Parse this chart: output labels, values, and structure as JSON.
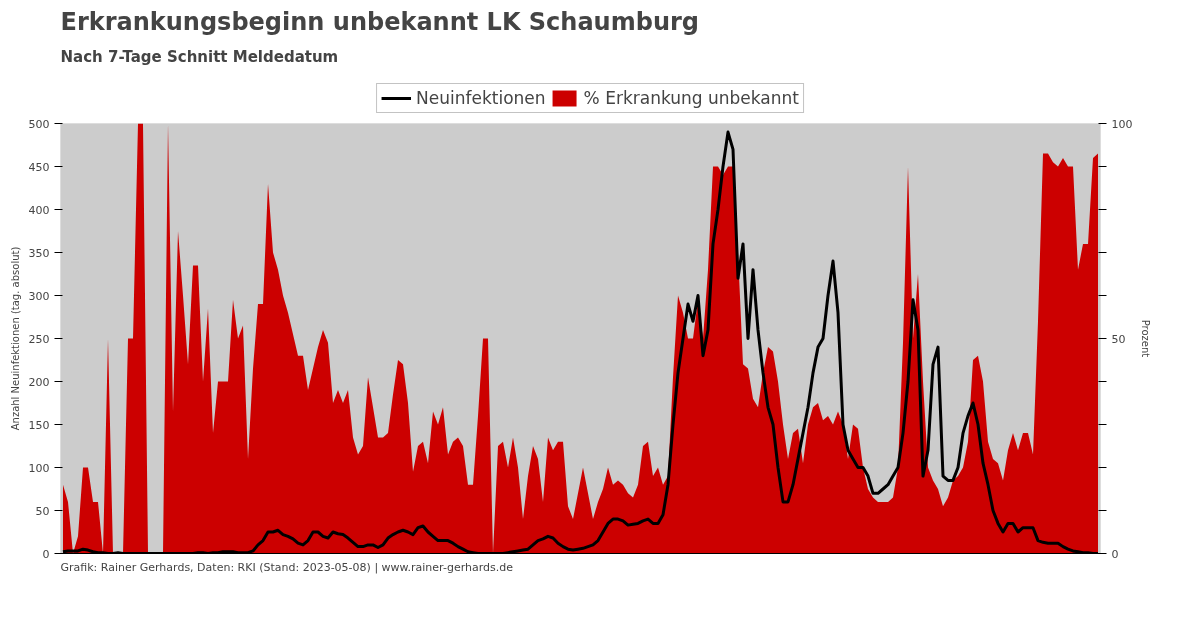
{
  "chart_data": {
    "type": "line",
    "title": "Erkrankungsbeginn unbekannt LK Schaumburg",
    "subtitle": "Nach 7-Tage Schnitt Meldedatum",
    "ylabel": "Anzahl Neuinfektionen (tag. absolut)",
    "y2label": "Prozent",
    "annotations": [
      "Grafik: Rainer Gerhards, Daten: RKI (Stand: 2023-05-08) | www.rainer-gerhards.de"
    ],
    "legend": "top",
    "ylim": [
      0,
      500
    ],
    "yticks": [
      0,
      50,
      100,
      150,
      200,
      250,
      300,
      350,
      400,
      450,
      500
    ],
    "y2lim": [
      0,
      100
    ],
    "y2ticks": [
      0,
      {
        "value": 10,
        "label": null
      },
      {
        "value": 20,
        "label": null
      },
      {
        "value": 30,
        "label": null
      },
      {
        "value": 40,
        "label": null
      },
      50,
      {
        "value": 60,
        "label": null
      },
      {
        "value": 70,
        "label": null
      },
      {
        "value": 80,
        "label": null
      },
      {
        "value": 90,
        "label": null
      },
      100
    ],
    "categories": [
      null,
      null,
      null,
      null,
      null,
      null,
      null,
      null,
      null,
      null,
      null,
      null,
      null,
      null,
      null,
      null,
      null,
      null,
      null,
      null,
      null,
      null,
      null,
      null,
      null,
      null,
      null,
      null,
      null,
      null,
      null,
      null,
      null,
      null,
      null,
      null,
      null,
      null,
      null,
      null,
      null,
      null,
      null,
      null,
      null,
      null,
      null,
      null,
      null,
      null,
      null,
      null,
      null,
      null,
      null,
      null,
      null,
      null,
      null,
      null,
      null,
      null,
      null,
      null,
      null,
      null,
      null,
      null,
      null,
      null,
      null,
      null,
      null,
      null,
      null,
      null,
      null,
      null,
      null,
      null,
      null,
      null,
      null,
      null,
      null,
      null,
      null,
      null,
      null,
      null,
      null,
      null,
      null,
      null,
      null,
      null,
      null,
      null,
      null,
      null,
      null,
      null,
      null,
      null,
      null,
      null,
      null,
      null,
      null,
      null,
      null,
      null,
      null,
      null,
      null,
      null,
      null,
      null,
      null,
      null,
      null,
      null,
      null,
      null,
      null,
      null,
      null,
      null,
      null,
      null,
      null,
      null,
      null,
      null,
      null,
      null,
      null,
      null,
      null,
      null,
      null,
      null,
      null,
      null,
      null,
      null,
      null,
      null,
      null,
      null,
      null,
      null,
      null,
      null,
      null,
      null,
      null,
      null,
      null,
      null,
      null,
      null,
      null,
      null,
      null,
      null,
      null,
      null,
      null,
      null,
      null,
      null,
      null,
      null,
      null,
      null,
      null,
      null,
      null,
      null,
      null,
      null,
      null,
      null,
      null,
      null,
      null,
      null,
      null,
      null,
      null,
      null,
      null,
      null,
      null,
      null,
      null,
      null,
      null,
      null,
      null,
      null,
      null,
      null,
      null,
      null,
      null,
      null
    ],
    "series": [
      {
        "name": "Neuinfektionen",
        "color": "#000000",
        "values": [
          2,
          3,
          3,
          3,
          5,
          4,
          2,
          1,
          1,
          0,
          0,
          1,
          0,
          0,
          0,
          0,
          0,
          0,
          0,
          0,
          0,
          0,
          0,
          0,
          0,
          0,
          0,
          1,
          1,
          0,
          1,
          1,
          2,
          2,
          2,
          1,
          1,
          1,
          3,
          10,
          15,
          25,
          25,
          27,
          22,
          20,
          17,
          12,
          10,
          15,
          25,
          25,
          20,
          18,
          25,
          23,
          22,
          18,
          13,
          8,
          8,
          10,
          10,
          7,
          10,
          18,
          22,
          25,
          27,
          25,
          22,
          30,
          32,
          25,
          20,
          15,
          15,
          15,
          12,
          8,
          5,
          2,
          1,
          0,
          0,
          0,
          0,
          0,
          0,
          1,
          2,
          3,
          4,
          5,
          10,
          15,
          17,
          20,
          18,
          12,
          8,
          5,
          4,
          5,
          6,
          8,
          10,
          15,
          25,
          35,
          40,
          40,
          38,
          33,
          34,
          35,
          38,
          40,
          35,
          35,
          45,
          80,
          150,
          210,
          250,
          290,
          270,
          300,
          230,
          260,
          360,
          400,
          450,
          490,
          470,
          320,
          360,
          250,
          330,
          260,
          210,
          170,
          150,
          100,
          60,
          60,
          80,
          110,
          140,
          170,
          210,
          240,
          250,
          300,
          340,
          280,
          150,
          120,
          110,
          100,
          100,
          90,
          70,
          70,
          75,
          80,
          90,
          100,
          140,
          200,
          295,
          260,
          90,
          120,
          220,
          240,
          90,
          85,
          85,
          100,
          140,
          160,
          175,
          150,
          105,
          80,
          50,
          35,
          25,
          35,
          35,
          25,
          30,
          30,
          30,
          15,
          13,
          12,
          12,
          12,
          8,
          5,
          3,
          2,
          1,
          1,
          0,
          0
        ]
      },
      {
        "name": "% Erkrankung unbekannt",
        "type": "area",
        "axis": "y2",
        "color": "#cc0000",
        "values": [
          16,
          12,
          0,
          4,
          20,
          20,
          12,
          12,
          0,
          50,
          0,
          0,
          0,
          50,
          50,
          100,
          100,
          0,
          0,
          0,
          0,
          100,
          33,
          75,
          60,
          44,
          67,
          67,
          40,
          57,
          28,
          40,
          40,
          40,
          59,
          50,
          53,
          22,
          43,
          58,
          58,
          86,
          70,
          66,
          60,
          56,
          51,
          46,
          46,
          38,
          43,
          48,
          52,
          49,
          35,
          38,
          35,
          38,
          27,
          23,
          25,
          41,
          34,
          27,
          27,
          28,
          37,
          45,
          44,
          35,
          19,
          25,
          26,
          21,
          33,
          30,
          34,
          23,
          26,
          27,
          25,
          16,
          16,
          32,
          50,
          50,
          0,
          25,
          26,
          20,
          27,
          20,
          8,
          18,
          25,
          22,
          12,
          27,
          24,
          26,
          26,
          11,
          8,
          14,
          20,
          14,
          8,
          12,
          15,
          20,
          16,
          17,
          16,
          14,
          13,
          16,
          25,
          26,
          18,
          20,
          16,
          18,
          41,
          60,
          56,
          50,
          50,
          59,
          50,
          66,
          90,
          90,
          88,
          90,
          90,
          70,
          44,
          43,
          36,
          34,
          42,
          48,
          47,
          40,
          30,
          22,
          28,
          29,
          21,
          30,
          34,
          35,
          31,
          32,
          30,
          33,
          30,
          22,
          30,
          29,
          20,
          15,
          13,
          12,
          12,
          12,
          13,
          20,
          49,
          90,
          50,
          65,
          40,
          20,
          17,
          15,
          11,
          13,
          17,
          18,
          20,
          26,
          45,
          46,
          40,
          26,
          22,
          21,
          17,
          24,
          28,
          24,
          28,
          28,
          23,
          54,
          93,
          93,
          91,
          90,
          92,
          90,
          90,
          66,
          72,
          72,
          92,
          93
        ]
      }
    ]
  }
}
